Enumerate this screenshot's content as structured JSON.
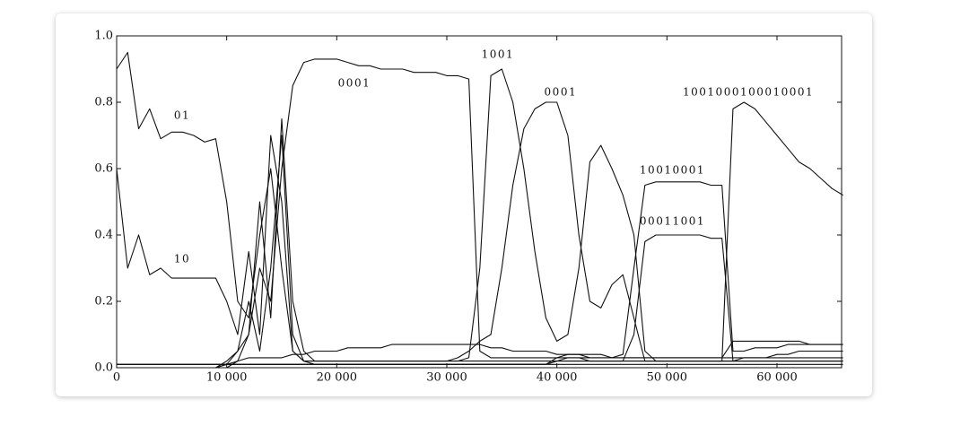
{
  "chart_data": {
    "type": "line",
    "x": [
      0,
      1000,
      2000,
      3000,
      4000,
      5000,
      6000,
      7000,
      8000,
      9000,
      10000,
      11000,
      12000,
      13000,
      14000,
      15000,
      16000,
      17000,
      18000,
      19000,
      20000,
      21000,
      22000,
      23000,
      24000,
      25000,
      26000,
      27000,
      28000,
      29000,
      30000,
      31000,
      32000,
      33000,
      34000,
      35000,
      36000,
      37000,
      38000,
      39000,
      40000,
      41000,
      42000,
      43000,
      44000,
      45000,
      46000,
      47000,
      48000,
      49000,
      50000,
      51000,
      52000,
      53000,
      54000,
      55000,
      56000,
      57000,
      58000,
      59000,
      60000,
      61000,
      62000,
      63000,
      64000,
      65000,
      66000
    ],
    "series": [
      {
        "color": "#111111",
        "values": [
          0.9,
          0.95,
          0.72,
          0.78,
          0.69,
          0.71,
          0.71,
          0.7,
          0.68,
          0.69,
          0.5,
          0.2,
          0.15,
          0.4,
          0.6,
          0.3,
          0.05,
          0.02,
          0.01,
          0.01,
          0.01,
          0.01,
          0.01,
          0.01,
          0.01,
          0.01,
          0.01,
          0.01,
          0.01,
          0.01,
          0.01,
          0.01,
          0.01,
          0.01,
          0.01,
          0.01,
          0.01,
          0.01,
          0.01,
          0.01,
          0.01,
          0.01,
          0.01,
          0.01,
          0.01,
          0.01,
          0.01,
          0.01,
          0.01,
          0.01,
          0.01,
          0.01,
          0.01,
          0.01,
          0.01,
          0.01,
          0.01,
          0.01,
          0.01,
          0.01,
          0.01,
          0.01,
          0.01,
          0.01,
          0.01,
          0.01,
          0.01
        ]
      },
      {
        "color": "#111111",
        "values": [
          0.6,
          0.3,
          0.4,
          0.28,
          0.3,
          0.27,
          0.27,
          0.27,
          0.27,
          0.27,
          0.2,
          0.1,
          0.35,
          0.1,
          0.7,
          0.5,
          0.05,
          0.02,
          0.02,
          0.02,
          0.02,
          0.02,
          0.02,
          0.02,
          0.02,
          0.02,
          0.02,
          0.02,
          0.02,
          0.02,
          0.02,
          0.02,
          0.02,
          0.02,
          0.02,
          0.02,
          0.02,
          0.02,
          0.02,
          0.02,
          0.02,
          0.02,
          0.02,
          0.02,
          0.02,
          0.02,
          0.02,
          0.02,
          0.02,
          0.02,
          0.02,
          0.02,
          0.02,
          0.02,
          0.02,
          0.02,
          0.02,
          0.02,
          0.02,
          0.02,
          0.02,
          0.02,
          0.02,
          0.02,
          0.02,
          0.02,
          0.02
        ]
      },
      {
        "color": "#111111",
        "values": [
          0,
          0,
          0,
          0,
          0,
          0,
          0,
          0,
          0,
          0,
          0.02,
          0.05,
          0.1,
          0.3,
          0.2,
          0.6,
          0.85,
          0.92,
          0.93,
          0.93,
          0.93,
          0.92,
          0.91,
          0.91,
          0.9,
          0.9,
          0.9,
          0.89,
          0.89,
          0.89,
          0.88,
          0.88,
          0.87,
          0.05,
          0.03,
          0.03,
          0.03,
          0.03,
          0.03,
          0.03,
          0.03,
          0.03,
          0.03,
          0.03,
          0.03,
          0.03,
          0.03,
          0.03,
          0.03,
          0.03,
          0.03,
          0.03,
          0.03,
          0.03,
          0.03,
          0.03,
          0.03,
          0.03,
          0.03,
          0.03,
          0.03,
          0.03,
          0.03,
          0.03,
          0.03,
          0.03,
          0.03
        ]
      },
      {
        "color": "#111111",
        "values": [
          0,
          0,
          0,
          0,
          0,
          0,
          0,
          0,
          0,
          0,
          0.01,
          0.05,
          0.2,
          0.05,
          0.3,
          0.7,
          0.1,
          0.02,
          0.02,
          0.02,
          0.02,
          0.02,
          0.02,
          0.02,
          0.02,
          0.02,
          0.02,
          0.02,
          0.02,
          0.02,
          0.02,
          0.02,
          0.03,
          0.3,
          0.88,
          0.9,
          0.8,
          0.6,
          0.35,
          0.15,
          0.08,
          0.1,
          0.3,
          0.62,
          0.67,
          0.6,
          0.52,
          0.4,
          0.05,
          0.02,
          0.02,
          0.02,
          0.02,
          0.02,
          0.02,
          0.02,
          0.02,
          0.02,
          0.02,
          0.02,
          0.02,
          0.02,
          0.02,
          0.02,
          0.02,
          0.02,
          0.02
        ]
      },
      {
        "color": "#111111",
        "values": [
          0,
          0,
          0,
          0,
          0,
          0,
          0,
          0,
          0,
          0,
          0,
          0.02,
          0.1,
          0.5,
          0.15,
          0.75,
          0.2,
          0.05,
          0.02,
          0.02,
          0.02,
          0.02,
          0.02,
          0.02,
          0.02,
          0.02,
          0.02,
          0.02,
          0.02,
          0.02,
          0.02,
          0.03,
          0.05,
          0.08,
          0.1,
          0.3,
          0.55,
          0.72,
          0.78,
          0.8,
          0.8,
          0.7,
          0.4,
          0.2,
          0.18,
          0.25,
          0.28,
          0.15,
          0.02,
          0.02,
          0.02,
          0.02,
          0.02,
          0.02,
          0.02,
          0.02,
          0.02,
          0.02,
          0.02,
          0.02,
          0.02,
          0.02,
          0.02,
          0.02,
          0.02,
          0.02,
          0.02
        ]
      },
      {
        "color": "#111111",
        "values": [
          0.01,
          0.01,
          0.01,
          0.01,
          0.01,
          0.01,
          0.01,
          0.01,
          0.01,
          0.01,
          0.01,
          0.01,
          0.01,
          0.01,
          0.01,
          0.01,
          0.01,
          0.01,
          0.01,
          0.01,
          0.01,
          0.01,
          0.01,
          0.01,
          0.01,
          0.01,
          0.01,
          0.01,
          0.01,
          0.01,
          0.01,
          0.01,
          0.01,
          0.01,
          0.01,
          0.01,
          0.01,
          0.01,
          0.01,
          0.01,
          0.03,
          0.04,
          0.04,
          0.03,
          0.03,
          0.03,
          0.04,
          0.3,
          0.55,
          0.56,
          0.56,
          0.56,
          0.56,
          0.56,
          0.55,
          0.55,
          0.05,
          0.05,
          0.06,
          0.06,
          0.06,
          0.07,
          0.07,
          0.07,
          0.07,
          0.07,
          0.07
        ]
      },
      {
        "color": "#111111",
        "values": [
          0.01,
          0.01,
          0.01,
          0.01,
          0.01,
          0.01,
          0.01,
          0.01,
          0.01,
          0.01,
          0.01,
          0.01,
          0.01,
          0.01,
          0.01,
          0.01,
          0.01,
          0.01,
          0.01,
          0.01,
          0.01,
          0.01,
          0.01,
          0.01,
          0.01,
          0.01,
          0.01,
          0.01,
          0.01,
          0.01,
          0.01,
          0.01,
          0.01,
          0.01,
          0.01,
          0.01,
          0.01,
          0.01,
          0.01,
          0.01,
          0.02,
          0.03,
          0.03,
          0.02,
          0.02,
          0.02,
          0.02,
          0.1,
          0.38,
          0.4,
          0.4,
          0.4,
          0.4,
          0.4,
          0.39,
          0.39,
          0.02,
          0.03,
          0.03,
          0.03,
          0.04,
          0.04,
          0.05,
          0.05,
          0.05,
          0.05,
          0.05
        ]
      },
      {
        "color": "#111111",
        "values": [
          0.01,
          0.01,
          0.01,
          0.01,
          0.01,
          0.01,
          0.01,
          0.01,
          0.01,
          0.01,
          0.01,
          0.01,
          0.01,
          0.01,
          0.01,
          0.01,
          0.01,
          0.01,
          0.01,
          0.01,
          0.01,
          0.01,
          0.01,
          0.01,
          0.01,
          0.01,
          0.01,
          0.01,
          0.01,
          0.01,
          0.01,
          0.01,
          0.01,
          0.01,
          0.01,
          0.01,
          0.01,
          0.01,
          0.01,
          0.01,
          0.02,
          0.02,
          0.02,
          0.02,
          0.02,
          0.02,
          0.02,
          0.02,
          0.02,
          0.02,
          0.02,
          0.02,
          0.02,
          0.02,
          0.02,
          0.02,
          0.78,
          0.8,
          0.78,
          0.74,
          0.7,
          0.66,
          0.62,
          0.6,
          0.57,
          0.54,
          0.52
        ]
      },
      {
        "color": "#111111",
        "values": [
          0,
          0,
          0,
          0,
          0,
          0,
          0,
          0,
          0,
          0,
          0.01,
          0.02,
          0.03,
          0.03,
          0.03,
          0.03,
          0.04,
          0.04,
          0.05,
          0.05,
          0.05,
          0.06,
          0.06,
          0.06,
          0.06,
          0.07,
          0.07,
          0.07,
          0.07,
          0.07,
          0.07,
          0.07,
          0.07,
          0.07,
          0.06,
          0.06,
          0.05,
          0.05,
          0.05,
          0.05,
          0.04,
          0.04,
          0.04,
          0.04,
          0.04,
          0.03,
          0.03,
          0.03,
          0.03,
          0.03,
          0.03,
          0.03,
          0.03,
          0.03,
          0.03,
          0.03,
          0.08,
          0.08,
          0.08,
          0.08,
          0.08,
          0.08,
          0.08,
          0.07,
          0.07,
          0.07,
          0.07
        ]
      }
    ],
    "annotations": [
      {
        "text": "01",
        "x": 5950,
        "y": 0.76
      },
      {
        "text": "10",
        "x": 5950,
        "y": 0.327
      },
      {
        "text": "0001",
        "x": 21600,
        "y": 0.857
      },
      {
        "text": "1001",
        "x": 34640,
        "y": 0.943
      },
      {
        "text": "0001",
        "x": 40340,
        "y": 0.83
      },
      {
        "text": "10010001",
        "x": 50500,
        "y": 0.595
      },
      {
        "text": "00011001",
        "x": 50500,
        "y": 0.44
      },
      {
        "text": "1001000100010001",
        "x": 57400,
        "y": 0.83
      }
    ],
    "xlim": [
      0,
      65870
    ],
    "ylim": [
      0,
      1
    ],
    "xticks": [
      0,
      {
        "value": 10000,
        "label": "10 000"
      },
      {
        "value": 20000,
        "label": "20 000"
      },
      {
        "value": 30000,
        "label": "30 000"
      },
      {
        "value": 40000,
        "label": "40 000"
      },
      {
        "value": 50000,
        "label": "50 000"
      },
      {
        "value": 60000,
        "label": "60 000"
      }
    ],
    "yticks": [
      {
        "value": 0,
        "label": "0.0"
      },
      0.2,
      0.4,
      0.6,
      0.8,
      {
        "value": 1,
        "label": "1.0"
      }
    ]
  }
}
